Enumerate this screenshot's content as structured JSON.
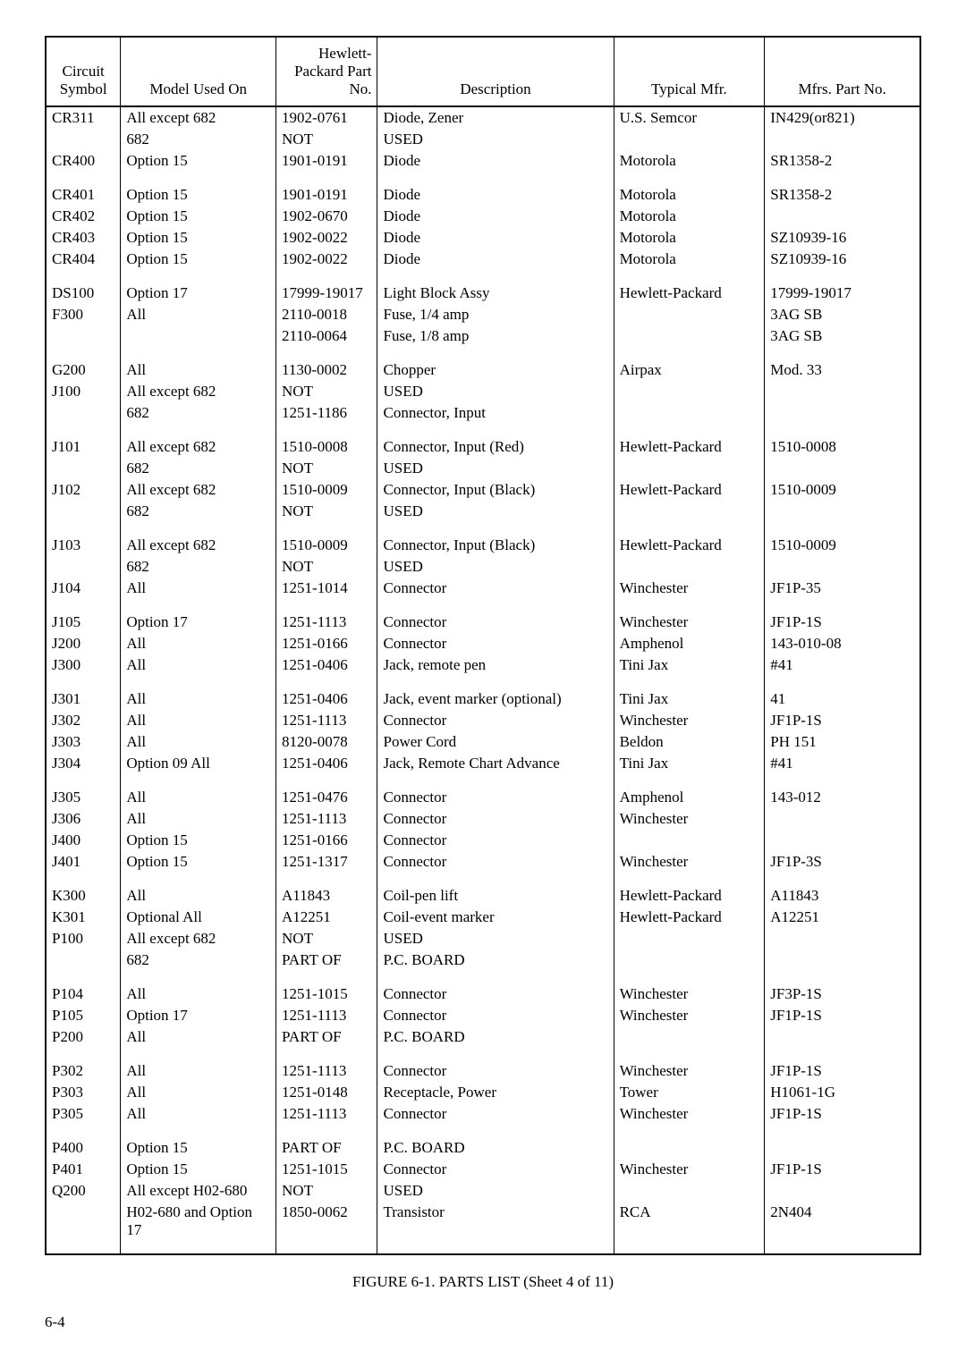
{
  "headers": {
    "circuit": "Circuit Symbol",
    "model": "Model Used On",
    "partno": "Hewlett-Packard Part No.",
    "desc": "Description",
    "mfr": "Typical Mfr.",
    "mfrno": "Mfrs. Part No."
  },
  "rows": [
    {
      "c": "CR311",
      "m": "All except 682",
      "p": "1902-0761",
      "d": "Diode, Zener",
      "f": "U.S. Semcor",
      "n": "IN429(or821)"
    },
    {
      "c": "",
      "m": "682",
      "p": "NOT",
      "d": "USED",
      "f": "",
      "n": ""
    },
    {
      "c": "CR400",
      "m": "Option 15",
      "p": "1901-0191",
      "d": "Diode",
      "f": "Motorola",
      "n": "SR1358-2"
    },
    {
      "spacer": true
    },
    {
      "c": "CR401",
      "m": "Option 15",
      "p": "1901-0191",
      "d": "Diode",
      "f": "Motorola",
      "n": "SR1358-2"
    },
    {
      "c": "CR402",
      "m": "Option 15",
      "p": "1902-0670",
      "d": "Diode",
      "f": "Motorola",
      "n": ""
    },
    {
      "c": "CR403",
      "m": "Option 15",
      "p": "1902-0022",
      "d": "Diode",
      "f": "Motorola",
      "n": "SZ10939-16"
    },
    {
      "c": "CR404",
      "m": "Option 15",
      "p": "1902-0022",
      "d": "Diode",
      "f": "Motorola",
      "n": "SZ10939-16"
    },
    {
      "spacer": true
    },
    {
      "c": "DS100",
      "m": "Option 17",
      "p": "17999-19017",
      "d": "Light Block Assy",
      "f": "Hewlett-Packard",
      "n": "17999-19017"
    },
    {
      "c": "F300",
      "m": "All",
      "p": "2110-0018",
      "d": "Fuse, 1/4 amp",
      "f": "",
      "n": "3AG SB"
    },
    {
      "c": "",
      "m": "",
      "p": "2110-0064",
      "d": "Fuse, 1/8 amp",
      "f": "",
      "n": "3AG SB"
    },
    {
      "spacer": true
    },
    {
      "c": "G200",
      "m": "All",
      "p": "1130-0002",
      "d": "Chopper",
      "f": "Airpax",
      "n": "Mod. 33"
    },
    {
      "c": "J100",
      "m": "All except 682",
      "p": "NOT",
      "d": "USED",
      "f": "",
      "n": ""
    },
    {
      "c": "",
      "m": "682",
      "p": "1251-1186",
      "d": "Connector, Input",
      "f": "",
      "n": ""
    },
    {
      "spacer": true
    },
    {
      "c": "J101",
      "m": "All except 682",
      "p": "1510-0008",
      "d": "Connector, Input (Red)",
      "f": "Hewlett-Packard",
      "n": "1510-0008"
    },
    {
      "c": "",
      "m": "682",
      "p": "NOT",
      "d": "USED",
      "f": "",
      "n": ""
    },
    {
      "c": "J102",
      "m": "All except 682",
      "p": "1510-0009",
      "d": "Connector, Input (Black)",
      "f": "Hewlett-Packard",
      "n": "1510-0009"
    },
    {
      "c": "",
      "m": "682",
      "p": "NOT",
      "d": "USED",
      "f": "",
      "n": ""
    },
    {
      "spacer": true
    },
    {
      "c": "J103",
      "m": "All except 682",
      "p": "1510-0009",
      "d": "Connector, Input (Black)",
      "f": "Hewlett-Packard",
      "n": "1510-0009"
    },
    {
      "c": "",
      "m": "682",
      "p": "NOT",
      "d": "USED",
      "f": "",
      "n": ""
    },
    {
      "c": "J104",
      "m": "All",
      "p": "1251-1014",
      "d": "Connector",
      "f": "Winchester",
      "n": "JF1P-35"
    },
    {
      "spacer": true
    },
    {
      "c": "J105",
      "m": "Option 17",
      "p": "1251-1113",
      "d": "Connector",
      "f": "Winchester",
      "n": "JF1P-1S"
    },
    {
      "c": "J200",
      "m": "All",
      "p": "1251-0166",
      "d": "Connector",
      "f": "Amphenol",
      "n": "143-010-08"
    },
    {
      "c": "J300",
      "m": "All",
      "p": "1251-0406",
      "d": "Jack, remote pen",
      "f": "Tini Jax",
      "n": "#41"
    },
    {
      "spacer": true
    },
    {
      "c": "J301",
      "m": "All",
      "p": "1251-0406",
      "d": "Jack, event marker (optional)",
      "f": "Tini Jax",
      "n": "41"
    },
    {
      "c": "J302",
      "m": "All",
      "p": "1251-1113",
      "d": "Connector",
      "f": "Winchester",
      "n": "JF1P-1S"
    },
    {
      "c": "J303",
      "m": "All",
      "p": "8120-0078",
      "d": "Power Cord",
      "f": "Beldon",
      "n": "PH 151"
    },
    {
      "c": "J304",
      "m": "Option 09 All",
      "p": "1251-0406",
      "d": "Jack, Remote Chart Advance",
      "f": "Tini Jax",
      "n": "#41"
    },
    {
      "spacer": true
    },
    {
      "c": "J305",
      "m": "All",
      "p": "1251-0476",
      "d": "Connector",
      "f": "Amphenol",
      "n": "143-012"
    },
    {
      "c": "J306",
      "m": "All",
      "p": "1251-1113",
      "d": "Connector",
      "f": "Winchester",
      "n": ""
    },
    {
      "c": "J400",
      "m": "Option 15",
      "p": "1251-0166",
      "d": "Connector",
      "f": "",
      "n": ""
    },
    {
      "c": "J401",
      "m": "Option 15",
      "p": "1251-1317",
      "d": "Connector",
      "f": "Winchester",
      "n": "JF1P-3S"
    },
    {
      "spacer": true
    },
    {
      "c": "K300",
      "m": "All",
      "p": "A11843",
      "d": "Coil-pen lift",
      "f": "Hewlett-Packard",
      "n": "A11843"
    },
    {
      "c": "K301",
      "m": "Optional All",
      "p": "A12251",
      "d": "Coil-event marker",
      "f": "Hewlett-Packard",
      "n": "A12251"
    },
    {
      "c": "P100",
      "m": "All except 682",
      "p": "NOT",
      "d": "USED",
      "f": "",
      "n": ""
    },
    {
      "c": "",
      "m": "682",
      "p": "PART OF",
      "d": "P.C. BOARD",
      "f": "",
      "n": ""
    },
    {
      "spacer": true
    },
    {
      "c": "P104",
      "m": "All",
      "p": "1251-1015",
      "d": "Connector",
      "f": "Winchester",
      "n": "JF3P-1S"
    },
    {
      "c": "P105",
      "m": "Option 17",
      "p": "1251-1113",
      "d": "Connector",
      "f": "Winchester",
      "n": "JF1P-1S"
    },
    {
      "c": "P200",
      "m": "All",
      "p": "PART OF",
      "d": "P.C. BOARD",
      "f": "",
      "n": ""
    },
    {
      "spacer": true
    },
    {
      "c": "P302",
      "m": "All",
      "p": "1251-1113",
      "d": "Connector",
      "f": "Winchester",
      "n": "JF1P-1S"
    },
    {
      "c": "P303",
      "m": "All",
      "p": "1251-0148",
      "d": "Receptacle, Power",
      "f": "Tower",
      "n": "H1061-1G"
    },
    {
      "c": "P305",
      "m": "All",
      "p": "1251-1113",
      "d": "Connector",
      "f": "Winchester",
      "n": "JF1P-1S"
    },
    {
      "spacer": true
    },
    {
      "c": "P400",
      "m": "Option 15",
      "p": "PART OF",
      "d": "P.C. BOARD",
      "f": "",
      "n": ""
    },
    {
      "c": "P401",
      "m": "Option 15",
      "p": "1251-1015",
      "d": "Connector",
      "f": "Winchester",
      "n": "JF1P-1S"
    },
    {
      "c": "Q200",
      "m": "All except H02-680",
      "p": "NOT",
      "d": "USED",
      "f": "",
      "n": ""
    },
    {
      "c": "",
      "m": "H02-680 and Option 17",
      "p": "1850-0062",
      "d": "Transistor",
      "f": "RCA",
      "n": "2N404"
    },
    {
      "spacer": true
    }
  ],
  "caption": "FIGURE 6-1.   PARTS LIST (Sheet 4 of 11)",
  "pagenum": "6-4"
}
